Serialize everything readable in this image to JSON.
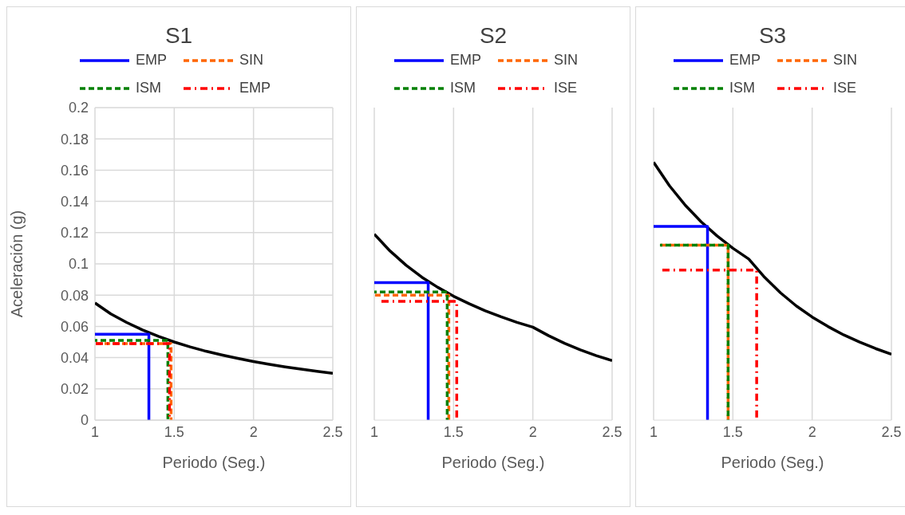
{
  "chart_data": [
    {
      "type": "line",
      "title": "S1",
      "xlabel": "Periodo (Seg.)",
      "ylabel": "Aceleración (g)",
      "xlim": [
        1,
        2.5
      ],
      "xticks": [
        1,
        1.5,
        2,
        2.5
      ],
      "ylim": [
        0,
        0.2
      ],
      "yticks": [
        0,
        0.02,
        0.04,
        0.06,
        0.08,
        0.1,
        0.12,
        0.14,
        0.16,
        0.18,
        0.2
      ],
      "grid": true,
      "legend": "top",
      "series": [
        {
          "color": "#000000",
          "line_style": "solid",
          "x": [
            1,
            1.1,
            1.2,
            1.3,
            1.4,
            1.5,
            1.6,
            1.7,
            1.8,
            1.9,
            2,
            2.1,
            2.2,
            2.3,
            2.4,
            2.5
          ],
          "values": [
            0.075,
            0.068,
            0.0625,
            0.0577,
            0.0536,
            0.05,
            0.0469,
            0.0441,
            0.0417,
            0.0395,
            0.0375,
            0.0357,
            0.0341,
            0.0326,
            0.0313,
            0.03
          ]
        },
        {
          "name": "EMP",
          "color": "#0000ff",
          "line_style": "solid",
          "x": [
            1,
            1.34,
            1.34
          ],
          "values": [
            0.055,
            0.055,
            0
          ]
        },
        {
          "name": "SIN",
          "color": "#ff6600",
          "line_style": "dashed",
          "x": [
            1,
            1.48,
            1.48
          ],
          "values": [
            0.049,
            0.049,
            0
          ]
        },
        {
          "name": "ISM",
          "color": "#008000",
          "line_style": "dashed",
          "x": [
            1,
            1.46,
            1.46
          ],
          "values": [
            0.051,
            0.051,
            0
          ]
        },
        {
          "name": "EMP",
          "color": "#ff0000",
          "line_style": "dashdot",
          "x": [
            1,
            1.47,
            1.47
          ],
          "values": [
            0.049,
            0.049,
            0
          ]
        }
      ]
    },
    {
      "type": "line",
      "title": "S2",
      "xlabel": "Periodo (Seg.)",
      "xlim": [
        1,
        2.5
      ],
      "xticks": [
        1,
        1.5,
        2,
        2.5
      ],
      "ylim": [
        0,
        0.2
      ],
      "yticks": [
        0,
        0.02,
        0.04,
        0.06,
        0.08,
        0.1,
        0.12,
        0.14,
        0.16,
        0.18,
        0.2
      ],
      "grid": true,
      "legend": "top",
      "tick_labels": "x",
      "series": [
        {
          "color": "#000000",
          "line_style": "solid",
          "x": [
            1,
            1.1,
            1.2,
            1.3,
            1.4,
            1.5,
            1.6,
            1.7,
            1.8,
            1.9,
            2,
            2.1,
            2.2,
            2.3,
            2.4,
            2.5
          ],
          "values": [
            0.119,
            0.1082,
            0.0992,
            0.0915,
            0.085,
            0.0793,
            0.0744,
            0.07,
            0.0661,
            0.0626,
            0.0595,
            0.054,
            0.0492,
            0.045,
            0.0413,
            0.0381
          ]
        },
        {
          "name": "EMP",
          "color": "#0000ff",
          "line_style": "solid",
          "x": [
            1,
            1.34,
            1.34
          ],
          "values": [
            0.088,
            0.088,
            0
          ]
        },
        {
          "name": "SIN",
          "color": "#ff6600",
          "line_style": "dashed",
          "x": [
            1,
            1.47,
            1.47
          ],
          "values": [
            0.08,
            0.08,
            0
          ]
        },
        {
          "name": "ISM",
          "color": "#008000",
          "line_style": "dashed",
          "x": [
            1,
            1.46,
            1.46
          ],
          "values": [
            0.082,
            0.082,
            0
          ]
        },
        {
          "name": "ISE",
          "color": "#ff0000",
          "line_style": "dashdot",
          "x": [
            1.04,
            1.52,
            1.52
          ],
          "values": [
            0.076,
            0.076,
            0
          ]
        }
      ]
    },
    {
      "type": "line",
      "title": "S3",
      "xlabel": "Periodo (Seg.)",
      "xlim": [
        1,
        2.5
      ],
      "xticks": [
        1,
        1.5,
        2,
        2.5
      ],
      "ylim": [
        0,
        0.2
      ],
      "yticks": [
        0,
        0.02,
        0.04,
        0.06,
        0.08,
        0.1,
        0.12,
        0.14,
        0.16,
        0.18,
        0.2
      ],
      "grid": true,
      "legend": "top",
      "tick_labels": "x",
      "series": [
        {
          "color": "#000000",
          "line_style": "solid",
          "x": [
            1,
            1.1,
            1.2,
            1.3,
            1.4,
            1.5,
            1.6,
            1.7,
            1.8,
            1.9,
            2,
            2.1,
            2.2,
            2.3,
            2.4,
            2.5
          ],
          "values": [
            0.165,
            0.15,
            0.1375,
            0.1269,
            0.1179,
            0.11,
            0.1031,
            0.0914,
            0.0815,
            0.0731,
            0.066,
            0.0599,
            0.0545,
            0.0499,
            0.0458,
            0.0422
          ]
        },
        {
          "name": "EMP",
          "color": "#0000ff",
          "line_style": "solid",
          "x": [
            1,
            1.34,
            1.34
          ],
          "values": [
            0.124,
            0.124,
            0
          ]
        },
        {
          "name": "SIN",
          "color": "#ff6600",
          "line_style": "dashed",
          "x": [
            1.04,
            1.47,
            1.47
          ],
          "values": [
            0.112,
            0.112,
            0
          ]
        },
        {
          "name": "ISM",
          "color": "#008000",
          "line_style": "dashed",
          "x": [
            1.04,
            1.47,
            1.47
          ],
          "values": [
            0.112,
            0.112,
            0
          ]
        },
        {
          "name": "ISE",
          "color": "#ff0000",
          "line_style": "dashdot",
          "x": [
            1.05,
            1.65,
            1.65
          ],
          "values": [
            0.096,
            0.096,
            0
          ]
        }
      ]
    }
  ]
}
